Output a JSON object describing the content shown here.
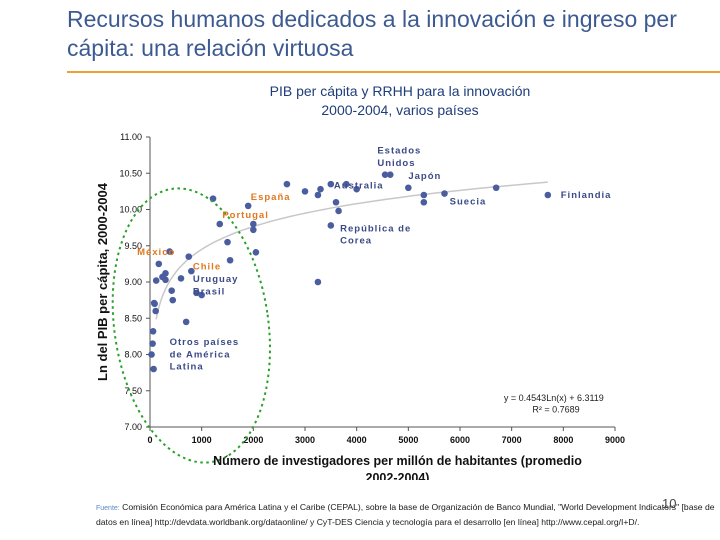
{
  "slide": {
    "title": "Recursos humanos dedicados a la innovación e ingreso per cápita: una relación virtuosa",
    "chart_title_line1": "PIB per cápita y RRHH para la innovación",
    "chart_title_line2": "2000-2004, varios países",
    "source_label": "Fuente:",
    "source_text": "Comisión Económica para América Latina y el Caribe (CEPAL), sobre la base de Organización de Banco Mundial, \"World Development Indicators\" [base de datos en línea] http://devdata.worldbank.org/dataonline/ y CyT-DES Ciencia y tecnología para el desarrollo [en línea] http://www.cepal.org/I+D/.",
    "page_number": "10"
  },
  "colors": {
    "title": "#3c5a91",
    "rule": "#f0a030",
    "point": "#4a5d9e",
    "trend": "#c8c8c8",
    "label_blue": "#3b4a86",
    "label_orange": "#e07820",
    "ellipse": "#2aa02a"
  },
  "chart_data": {
    "type": "scatter",
    "title": "PIB per cápita y RRHH para la innovación 2000-2004, varios países",
    "xlabel_line1": "Número de investigadores per millón de habitantes (promedio",
    "xlabel_line2": "2002-2004)",
    "ylabel": "Ln del PIB per cápita, 2000-2004",
    "xlim": [
      0,
      9000
    ],
    "ylim": [
      7.0,
      11.0
    ],
    "x_ticks": [
      0,
      1000,
      2000,
      3000,
      4000,
      5000,
      6000,
      7000,
      8000,
      9000
    ],
    "x_tick_labels": [
      "0",
      "1000",
      "2000",
      "3000",
      "4000",
      "5000",
      "6000",
      "7000",
      "8000",
      "9000"
    ],
    "y_ticks": [
      7.0,
      7.5,
      8.0,
      8.5,
      9.0,
      9.5,
      10.0,
      10.5,
      11.0
    ],
    "y_tick_labels": [
      "7.00",
      "7.50",
      "8.00",
      "8.50",
      "9.00",
      "9.50",
      "10.00",
      "10.50",
      "11.00"
    ],
    "points": [
      {
        "x": 30,
        "y": 8.0
      },
      {
        "x": 50,
        "y": 8.15
      },
      {
        "x": 60,
        "y": 8.32
      },
      {
        "x": 80,
        "y": 8.71
      },
      {
        "x": 90,
        "y": 8.7
      },
      {
        "x": 110,
        "y": 8.6
      },
      {
        "x": 70,
        "y": 7.8
      },
      {
        "x": 120,
        "y": 9.02
      },
      {
        "x": 170,
        "y": 9.25
      },
      {
        "x": 240,
        "y": 9.07
      },
      {
        "x": 300,
        "y": 9.12
      },
      {
        "x": 300,
        "y": 9.03
      },
      {
        "x": 380,
        "y": 9.42
      },
      {
        "x": 420,
        "y": 8.88
      },
      {
        "x": 440,
        "y": 8.75
      },
      {
        "x": 600,
        "y": 9.05
      },
      {
        "x": 700,
        "y": 8.45
      },
      {
        "x": 750,
        "y": 9.35
      },
      {
        "x": 800,
        "y": 9.15
      },
      {
        "x": 900,
        "y": 8.85
      },
      {
        "x": 1000,
        "y": 8.82
      },
      {
        "x": 1220,
        "y": 10.15
      },
      {
        "x": 1350,
        "y": 9.8
      },
      {
        "x": 1500,
        "y": 9.55
      },
      {
        "x": 1550,
        "y": 9.3
      },
      {
        "x": 1900,
        "y": 10.05
      },
      {
        "x": 2000,
        "y": 9.8
      },
      {
        "x": 2000,
        "y": 9.72
      },
      {
        "x": 2050,
        "y": 9.41
      },
      {
        "x": 2650,
        "y": 10.35
      },
      {
        "x": 3000,
        "y": 10.25
      },
      {
        "x": 3250,
        "y": 10.2
      },
      {
        "x": 3300,
        "y": 10.28
      },
      {
        "x": 3250,
        "y": 9.0
      },
      {
        "x": 3500,
        "y": 10.35
      },
      {
        "x": 3600,
        "y": 10.1
      },
      {
        "x": 3650,
        "y": 9.98
      },
      {
        "x": 3800,
        "y": 10.35
      },
      {
        "x": 4000,
        "y": 10.28
      },
      {
        "x": 3500,
        "y": 9.78
      },
      {
        "x": 4550,
        "y": 10.48
      },
      {
        "x": 4650,
        "y": 10.48
      },
      {
        "x": 5000,
        "y": 10.3
      },
      {
        "x": 5300,
        "y": 10.2
      },
      {
        "x": 5300,
        "y": 10.1
      },
      {
        "x": 5700,
        "y": 10.22
      },
      {
        "x": 6700,
        "y": 10.3
      },
      {
        "x": 7700,
        "y": 10.2
      }
    ],
    "trendline": {
      "type": "log",
      "a": 0.4543,
      "b": 6.3119,
      "x_range": [
        120,
        7700
      ]
    },
    "equation": "y = 0.4543Ln(x) + 6.3119",
    "r_squared": "R² = 0.7689",
    "annotations": [
      {
        "key": "usa1",
        "text": "Estados",
        "anchor_x": 4400,
        "anchor_y": 10.77,
        "color": "blue"
      },
      {
        "key": "usa2",
        "text": "Unidos",
        "anchor_x": 4400,
        "anchor_y": 10.6,
        "color": "blue"
      },
      {
        "key": "japon",
        "text": "Japón",
        "anchor_x": 5000,
        "anchor_y": 10.42,
        "color": "blue"
      },
      {
        "key": "australia",
        "text": "Australia",
        "anchor_x": 3560,
        "anchor_y": 10.29,
        "color": "blue"
      },
      {
        "key": "espana",
        "text": "España",
        "anchor_x": 1950,
        "anchor_y": 10.13,
        "color": "orange"
      },
      {
        "key": "suecia",
        "text": "Suecia",
        "anchor_x": 5800,
        "anchor_y": 10.07,
        "color": "blue"
      },
      {
        "key": "finlandia",
        "text": "Finlandia",
        "anchor_x": 7950,
        "anchor_y": 10.16,
        "color": "blue"
      },
      {
        "key": "portugal",
        "text": "Portugal",
        "anchor_x": 1400,
        "anchor_y": 9.88,
        "color": "orange"
      },
      {
        "key": "corea1",
        "text": "República de",
        "anchor_x": 3680,
        "anchor_y": 9.7,
        "color": "blue"
      },
      {
        "key": "corea2",
        "text": "Corea",
        "anchor_x": 3680,
        "anchor_y": 9.53,
        "color": "blue"
      },
      {
        "key": "mexico",
        "text": "México",
        "anchor_x": -250,
        "anchor_y": 9.37,
        "color": "orange"
      },
      {
        "key": "chile",
        "text": "Chile",
        "anchor_x": 830,
        "anchor_y": 9.17,
        "color": "orange"
      },
      {
        "key": "uruguay",
        "text": "Uruguay",
        "anchor_x": 830,
        "anchor_y": 9.0,
        "color": "blue"
      },
      {
        "key": "brasil",
        "text": "Brasil",
        "anchor_x": 830,
        "anchor_y": 8.83,
        "color": "blue"
      },
      {
        "key": "otros1",
        "text": "Otros países",
        "anchor_x": 380,
        "anchor_y": 8.13,
        "color": "blue"
      },
      {
        "key": "otros2",
        "text": "de América",
        "anchor_x": 380,
        "anchor_y": 7.96,
        "color": "blue"
      },
      {
        "key": "otros3",
        "text": "Latina",
        "anchor_x": 380,
        "anchor_y": 7.79,
        "color": "blue"
      }
    ]
  }
}
